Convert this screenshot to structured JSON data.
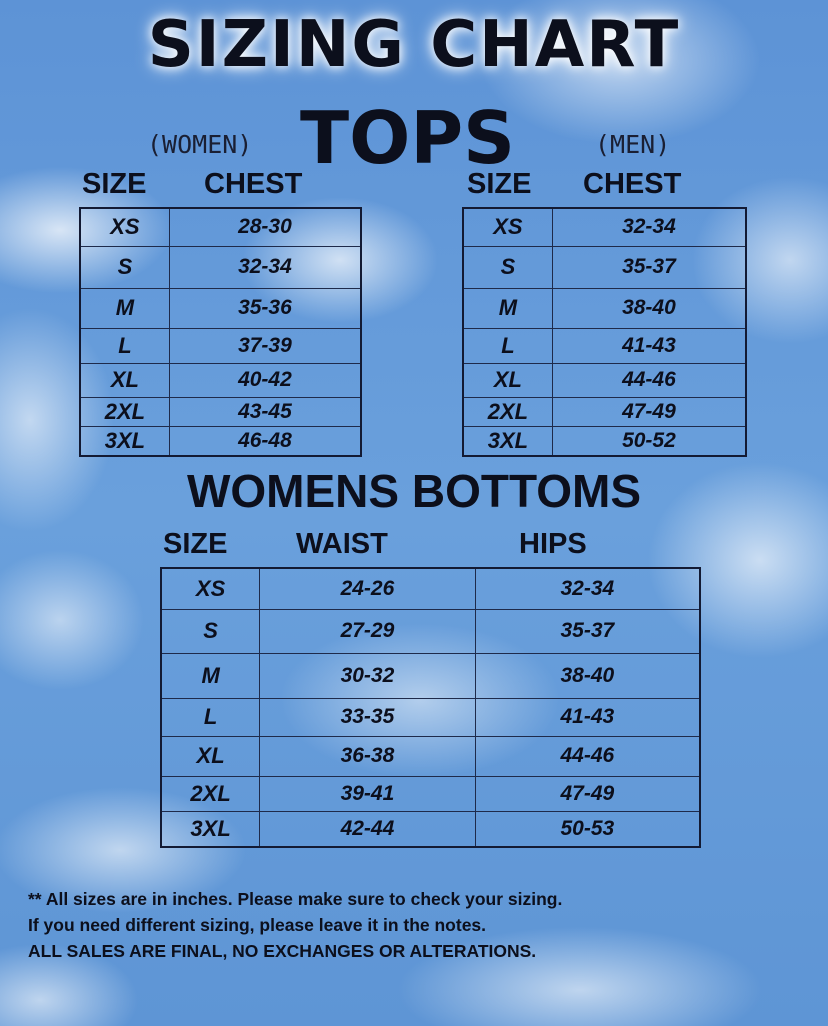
{
  "title": "SIZING CHART",
  "tops": {
    "heading": "TOPS",
    "women": {
      "label": "(WOMEN)",
      "size_header": "SIZE",
      "chest_header": "CHEST",
      "rows": [
        [
          "XS",
          "28-30"
        ],
        [
          "S",
          "32-34"
        ],
        [
          "M",
          "35-36"
        ],
        [
          "L",
          "37-39"
        ],
        [
          "XL",
          "40-42"
        ],
        [
          "2XL",
          "43-45"
        ],
        [
          "3XL",
          "46-48"
        ]
      ]
    },
    "men": {
      "label": "(MEN)",
      "size_header": "SIZE",
      "chest_header": "CHEST",
      "rows": [
        [
          "XS",
          "32-34"
        ],
        [
          "S",
          "35-37"
        ],
        [
          "M",
          "38-40"
        ],
        [
          "L",
          "41-43"
        ],
        [
          "XL",
          "44-46"
        ],
        [
          "2XL",
          "47-49"
        ],
        [
          "3XL",
          "50-52"
        ]
      ]
    }
  },
  "bottoms": {
    "heading": "WOMENS BOTTOMS",
    "size_header": "SIZE",
    "waist_header": "WAIST",
    "hips_header": "HIPS",
    "rows": [
      [
        "XS",
        "24-26",
        "32-34"
      ],
      [
        "S",
        "27-29",
        "35-37"
      ],
      [
        "M",
        "30-32",
        "38-40"
      ],
      [
        "L",
        "33-35",
        "41-43"
      ],
      [
        "XL",
        "36-38",
        "44-46"
      ],
      [
        "2XL",
        "39-41",
        "47-49"
      ],
      [
        "3XL",
        "42-44",
        "50-53"
      ]
    ]
  },
  "footer": [
    "** All sizes are in inches. Please make sure to check your sizing.",
    "If you need different sizing, please leave it in the notes.",
    "ALL SALES ARE FINAL, NO EXCHANGES OR ALTERATIONS."
  ]
}
